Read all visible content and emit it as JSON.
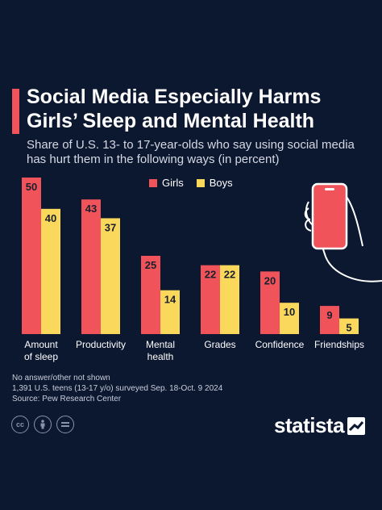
{
  "header": {
    "title_line1": "Social Media Especially Harms",
    "title_line2": "Girls’ Sleep and Mental Health",
    "subtitle_line1": "Share of U.S. 13- to 17-year-olds who say using social media",
    "subtitle_line2": "has hurt them in the following ways (in percent)"
  },
  "legend": {
    "girls": "Girls",
    "boys": "Boys"
  },
  "colors": {
    "girls": "#f0545a",
    "boys": "#fad85c",
    "background": "#0c1730"
  },
  "chart_data": {
    "type": "bar",
    "categories": [
      [
        "Amount",
        "of sleep"
      ],
      [
        "Productivity"
      ],
      [
        "Mental",
        "health"
      ],
      [
        "Grades"
      ],
      [
        "Confidence"
      ],
      [
        "Friendships"
      ]
    ],
    "series": [
      {
        "name": "Girls",
        "values": [
          50,
          43,
          25,
          22,
          20,
          9
        ]
      },
      {
        "name": "Boys",
        "values": [
          40,
          37,
          14,
          22,
          10,
          5
        ]
      }
    ],
    "ylim": [
      0,
      50
    ],
    "legend_position": "top-center",
    "grid": false
  },
  "notes": {
    "line1": "No answer/other not shown",
    "line2": "1,391 U.S. teens (13-17 y/o) surveyed Sep. 18-Oct. 9 2024",
    "line3": "Source: Pew Research Center"
  },
  "footer": {
    "brand": "statista",
    "cc_icons": [
      "cc-icon",
      "person-icon",
      "equals-icon"
    ]
  }
}
